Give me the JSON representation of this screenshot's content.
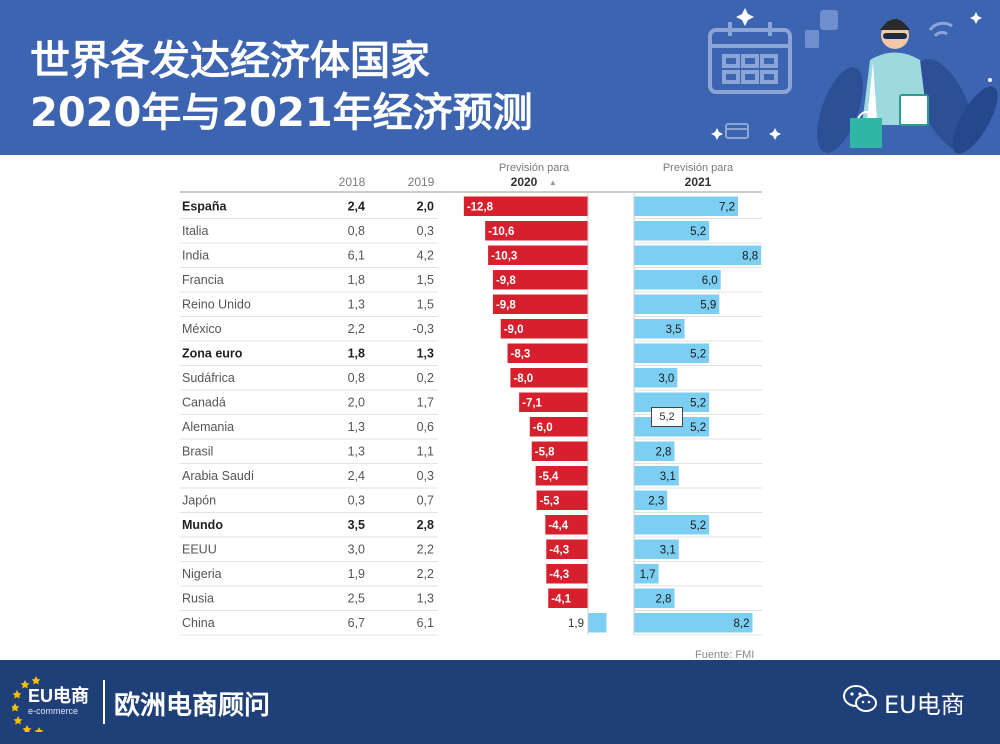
{
  "header": {
    "title_line1": "世界各发达经济体国家",
    "title_line2": "2020年与2021年经济预测"
  },
  "footer": {
    "logo_main": "EU电商",
    "logo_sub": "e-commerce",
    "brand": "欧洲电商顾问",
    "account": "EU电商"
  },
  "tooltip": "5,2",
  "chart_data": {
    "type": "table",
    "columns": [
      "2018",
      "2019",
      "Previsión para 2020",
      "Previsión para 2021"
    ],
    "headers": {
      "y2018": "2018",
      "y2019": "2019",
      "prev": "Previsión para",
      "y2020": "2020",
      "sort_marker": "▲",
      "y2021": "2021"
    },
    "source": "Fuente: FMI",
    "rows": [
      {
        "country": "España",
        "y2018": "2.4",
        "y2019": "2.0",
        "p2020": -12.8,
        "p2021": 7.2,
        "bold": true
      },
      {
        "country": "Italia",
        "y2018": "0.8",
        "y2019": "0.3",
        "p2020": -10.6,
        "p2021": 5.2,
        "bold": false
      },
      {
        "country": "India",
        "y2018": "6.1",
        "y2019": "4.2",
        "p2020": -10.3,
        "p2021": 8.8,
        "bold": false
      },
      {
        "country": "Francia",
        "y2018": "1.8",
        "y2019": "1.5",
        "p2020": -9.8,
        "p2021": 6.0,
        "bold": false
      },
      {
        "country": "Reino Unido",
        "y2018": "1.3",
        "y2019": "1.5",
        "p2020": -9.8,
        "p2021": 5.9,
        "bold": false
      },
      {
        "country": "México",
        "y2018": "2.2",
        "y2019": "-0.3",
        "p2020": -9.0,
        "p2021": 3.5,
        "bold": false
      },
      {
        "country": "Zona euro",
        "y2018": "1.8",
        "y2019": "1.3",
        "p2020": -8.3,
        "p2021": 5.2,
        "bold": true
      },
      {
        "country": "Sudáfrica",
        "y2018": "0.8",
        "y2019": "0.2",
        "p2020": -8.0,
        "p2021": 3.0,
        "bold": false
      },
      {
        "country": "Canadá",
        "y2018": "2.0",
        "y2019": "1.7",
        "p2020": -7.1,
        "p2021": 5.2,
        "bold": false
      },
      {
        "country": "Alemania",
        "y2018": "1.3",
        "y2019": "0.6",
        "p2020": -6.0,
        "p2021": 5.2,
        "bold": false
      },
      {
        "country": "Brasil",
        "y2018": "1.3",
        "y2019": "1.1",
        "p2020": -5.8,
        "p2021": 2.8,
        "bold": false
      },
      {
        "country": "Arabia Saudí",
        "y2018": "2.4",
        "y2019": "0.3",
        "p2020": -5.4,
        "p2021": 3.1,
        "bold": false
      },
      {
        "country": "Japón",
        "y2018": "0.3",
        "y2019": "0.7",
        "p2020": -5.3,
        "p2021": 2.3,
        "bold": false
      },
      {
        "country": "Mundo",
        "y2018": "3.5",
        "y2019": "2.8",
        "p2020": -4.4,
        "p2021": 5.2,
        "bold": true
      },
      {
        "country": "EEUU",
        "y2018": "3.0",
        "y2019": "2.2",
        "p2020": -4.3,
        "p2021": 3.1,
        "bold": false
      },
      {
        "country": "Nigeria",
        "y2018": "1.9",
        "y2019": "2.2",
        "p2020": -4.3,
        "p2021": 1.7,
        "bold": false
      },
      {
        "country": "Rusia",
        "y2018": "2.5",
        "y2019": "1.3",
        "p2020": -4.1,
        "p2021": 2.8,
        "bold": false
      },
      {
        "country": "China",
        "y2018": "6.7",
        "y2019": "6.1",
        "p2020": 1.9,
        "p2021": 8.2,
        "bold": false
      }
    ],
    "colors": {
      "negative": "#d6202d",
      "positive": "#7ccff2",
      "header_band": "#3d64b0",
      "footer_band": "#1f3f78"
    }
  }
}
